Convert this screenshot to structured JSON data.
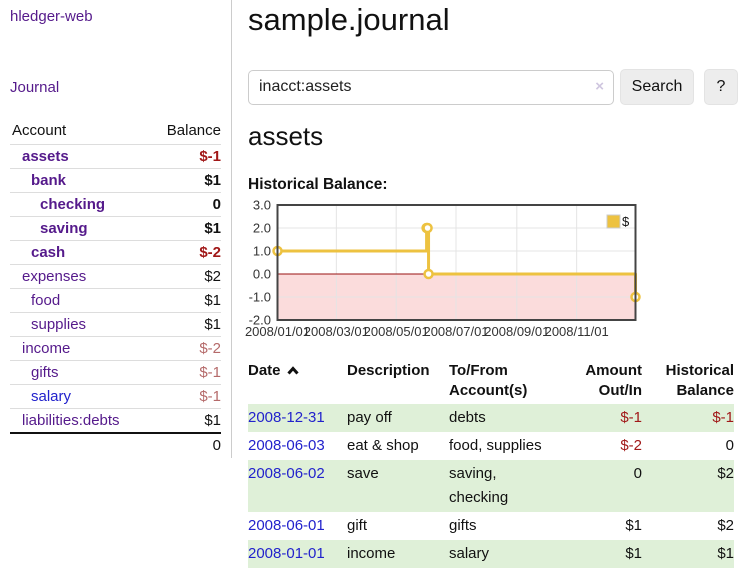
{
  "app": {
    "title": "hledger-web"
  },
  "sidebar": {
    "nav": {
      "journal": "Journal"
    },
    "accounts": {
      "col_account": "Account",
      "col_balance": "Balance",
      "rows": [
        {
          "name": "assets",
          "balance": "$-1"
        },
        {
          "name": "bank",
          "balance": "$1"
        },
        {
          "name": "checking",
          "balance": "0"
        },
        {
          "name": "saving",
          "balance": "$1"
        },
        {
          "name": "cash",
          "balance": "$-2"
        },
        {
          "name": "expenses",
          "balance": "$2"
        },
        {
          "name": "food",
          "balance": "$1"
        },
        {
          "name": "supplies",
          "balance": "$1"
        },
        {
          "name": "income",
          "balance": "$-2"
        },
        {
          "name": "gifts",
          "balance": "$-1"
        },
        {
          "name": "salary",
          "balance": "$-1"
        },
        {
          "name": "liabilities:debts",
          "balance": "$1"
        }
      ],
      "total": "0"
    }
  },
  "main": {
    "journal_title": "sample.journal",
    "search": {
      "value": "inacct:assets",
      "clear": "×",
      "search_label": "Search",
      "help_label": "?"
    },
    "account_heading": "assets",
    "chart_label": "Historical Balance:"
  },
  "chart_data": {
    "type": "line",
    "title": "Historical Balance",
    "style": "step",
    "legend_position": "top-right",
    "series": [
      {
        "name": "$",
        "points": [
          [
            "2008-01-01",
            1
          ],
          [
            "2008-06-01",
            2
          ],
          [
            "2008-06-02",
            2
          ],
          [
            "2008-06-03",
            0
          ],
          [
            "2008-12-31",
            -1
          ]
        ]
      }
    ],
    "xlim": [
      "2008-01-01",
      "2008-12-31"
    ],
    "ylim": [
      -2,
      3
    ],
    "y_ticks": [
      3,
      2,
      1,
      0,
      -1,
      -2
    ],
    "x_ticks": [
      {
        "date": "2008-01-01",
        "label": "2008/01/01"
      },
      {
        "date": "2008-03-01",
        "label": "2008/03/01"
      },
      {
        "date": "2008-05-01",
        "label": "2008/05/01"
      },
      {
        "date": "2008-07-01",
        "label": "2008/07/01"
      },
      {
        "date": "2008-09-01",
        "label": "2008/09/01"
      },
      {
        "date": "2008-11-01",
        "label": "2008/11/01"
      }
    ],
    "grid": true,
    "colors": {
      "line": "#edc240",
      "negative_fill": "#fbdcdc",
      "zero_line": "#991111",
      "grid": "#e4e4e4",
      "border": "#444444"
    }
  },
  "register": {
    "headers": {
      "date": "Date",
      "description": "Description",
      "account": "To/From Account(s)",
      "amount": "Amount Out/In",
      "balance": "Historical Balance"
    },
    "rows": [
      {
        "date": "2008-12-31",
        "description": "pay off",
        "account": "debts",
        "amount": "$-1",
        "balance": "$-1"
      },
      {
        "date": "2008-06-03",
        "description": "eat & shop",
        "account": "food, supplies",
        "amount": "$-2",
        "balance": "0"
      },
      {
        "date": "2008-06-02",
        "description": "save",
        "account": "saving, checking",
        "amount": "0",
        "balance": "$2"
      },
      {
        "date": "2008-06-01",
        "description": "gift",
        "account": "gifts",
        "amount": "$1",
        "balance": "$2"
      },
      {
        "date": "2008-01-01",
        "description": "income",
        "account": "salary",
        "amount": "$1",
        "balance": "$1"
      }
    ]
  },
  "colors": {
    "link_purple": "#551a8b",
    "link_blue": "#2222cc",
    "negative": "#a11818",
    "negative_muted": "#b56a6a",
    "row_green": "#dff0d8"
  }
}
